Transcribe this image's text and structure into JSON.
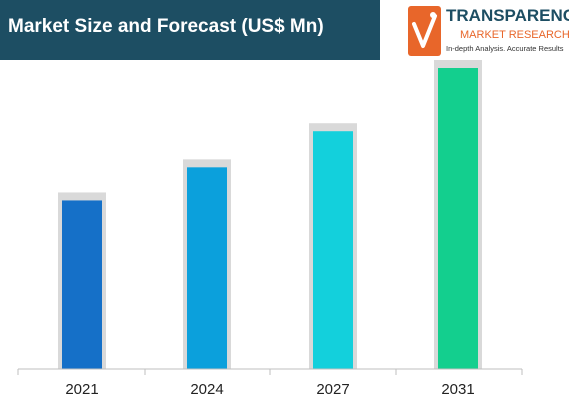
{
  "header": {
    "title": "Market Size and Forecast (US$ Mn)"
  },
  "logo": {
    "name": "TRANSPARENCY",
    "subtitle": "MARKET RESEARCH",
    "tagline": "In-depth Analysis. Accurate Results",
    "colors": {
      "navy": "#1d4e63",
      "orange": "#e8662a"
    }
  },
  "chart_data": {
    "type": "bar",
    "categories": [
      "2021",
      "2024",
      "2027",
      "2031"
    ],
    "values": [
      0.56,
      0.67,
      0.79,
      1.0
    ],
    "ylim": [
      0,
      1
    ],
    "grid": false,
    "legend": "none",
    "bar_colors": [
      "#1570c8",
      "#0ba0dc",
      "#13d0dc",
      "#13cf8e"
    ],
    "shadow_color": "#d9d9d9"
  }
}
